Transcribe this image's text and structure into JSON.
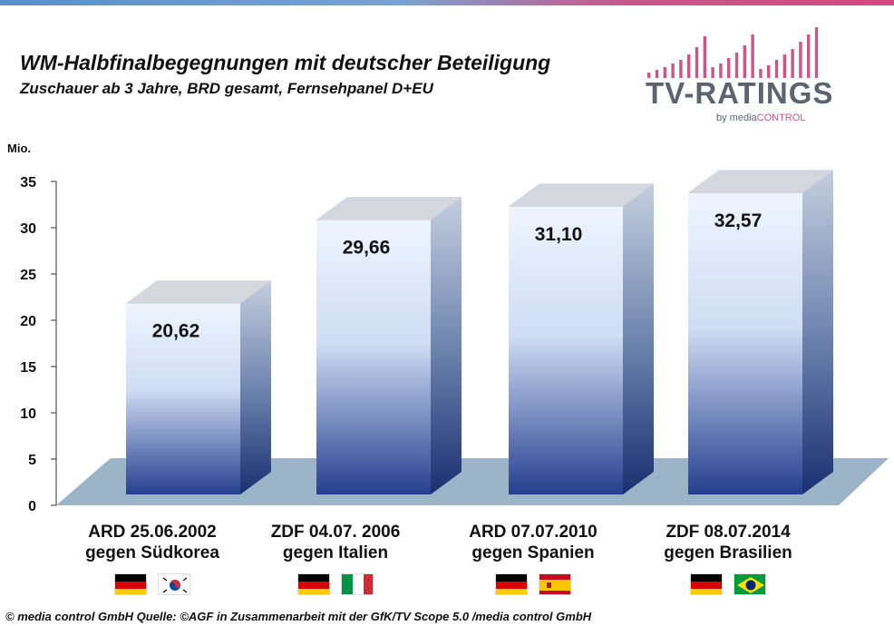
{
  "title": "WM-Halbfinalbegegnungen mit deutscher Beteiligung",
  "subtitle": "Zuschauer ab 3 Jahre, BRD gesamt, Fernsehpanel D+EU",
  "logo": {
    "main": "TV-RATINGS",
    "sub_prefix": "by media",
    "sub_suffix": "CONTROL"
  },
  "source": "© media control GmbH  Quelle: ©AGF in Zusammenarbeit mit der GfK/TV Scope 5.0 /media control GmbH",
  "colors": {
    "bar_top": "#eef5ff",
    "bar_bottom": "#243f8f",
    "floor": "#9bb4c8",
    "accent": "#c9578a"
  },
  "chart_data": {
    "type": "bar",
    "unit_label": "Mio.",
    "ylim": [
      0,
      35
    ],
    "yticks": [
      "0",
      "5",
      "10",
      "15",
      "20",
      "25",
      "30",
      "35"
    ],
    "categories": [
      {
        "line1": "ARD 25.06.2002",
        "line2": "gegen Südkorea",
        "flags": [
          "germany-flag",
          "south-korea-flag"
        ]
      },
      {
        "line1": "ZDF 04.07. 2006",
        "line2": "gegen Italien",
        "flags": [
          "germany-flag",
          "italy-flag"
        ]
      },
      {
        "line1": "ARD 07.07.2010",
        "line2": "gegen Spanien",
        "flags": [
          "germany-flag",
          "spain-flag"
        ]
      },
      {
        "line1": "ZDF 08.07.2014",
        "line2": "gegen Brasilien",
        "flags": [
          "germany-flag",
          "brazil-flag"
        ]
      }
    ],
    "values": [
      20.62,
      29.66,
      31.1,
      32.57
    ],
    "value_labels": [
      "20,62",
      "29,66",
      "31,10",
      "32,57"
    ],
    "grid": false,
    "style": "3d-bar"
  }
}
